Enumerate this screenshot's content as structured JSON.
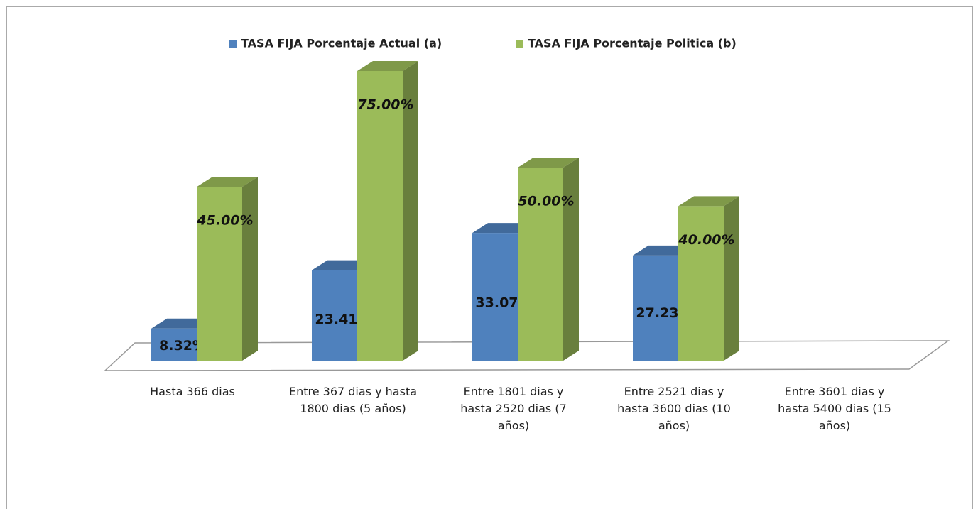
{
  "chart_data": {
    "type": "bar3d",
    "categories": [
      "Hasta 366 dias",
      "Entre 367  dias y hasta 1800 dias (5 años)",
      "Entre 1801  dias y hasta 2520 dias (7 años)",
      "Entre  2521 dias y hasta 3600 dias (10 años)",
      "Entre 3601  dias y hasta 5400 dias (15 años)"
    ],
    "series": [
      {
        "name": "TASA FIJA Porcentaje Actual (a)",
        "color": "#4f81bd",
        "values": [
          8.32,
          23.41,
          33.07,
          27.23,
          null
        ],
        "value_labels": [
          "8.32%",
          "23.41%",
          "33.07%",
          "27.23%",
          null
        ]
      },
      {
        "name": "TASA FIJA Porcentaje Politica  (b)",
        "color": "#9bbb59",
        "values": [
          45,
          75,
          50,
          40,
          null
        ],
        "value_labels": [
          "45.00%",
          "75.00%",
          "50.00%",
          "40.00%",
          null
        ]
      }
    ],
    "legend": "top"
  }
}
